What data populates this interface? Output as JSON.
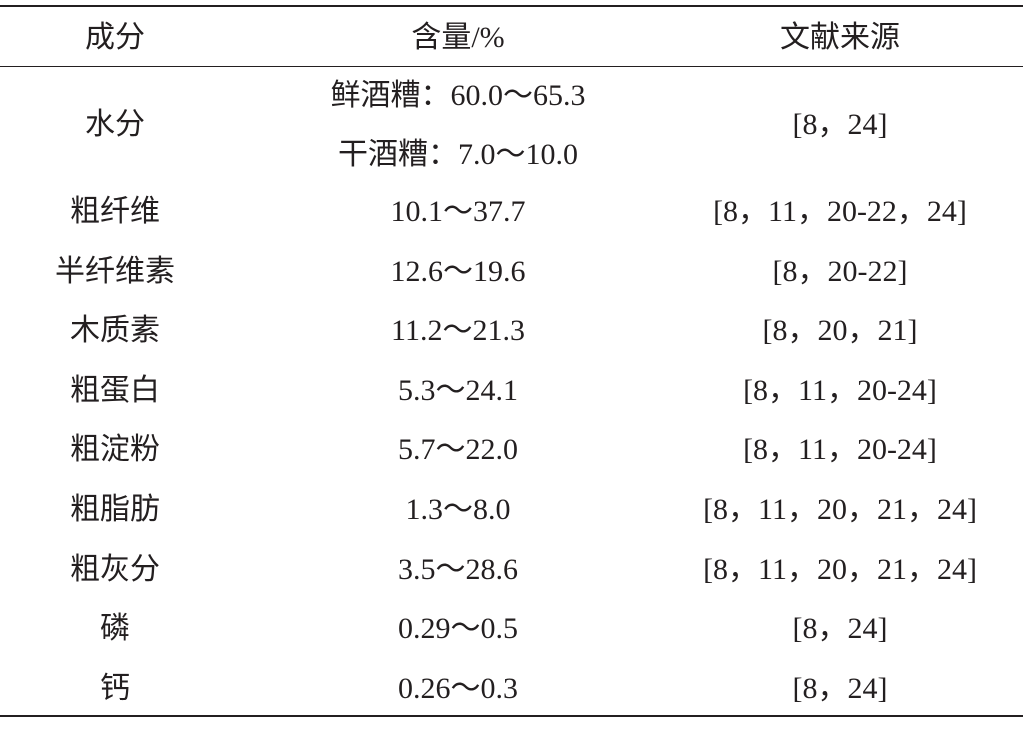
{
  "table": {
    "header": [
      "成分",
      "含量/%",
      "文献来源"
    ],
    "rows": [
      [
        "水分",
        [
          "鲜酒糟：60.0～65.3",
          "干酒糟：7.0～10.0"
        ],
        "[8，24]"
      ],
      [
        "粗纤维",
        "10.1～37.7",
        "[8，11，20-22，24]"
      ],
      [
        "半纤维素",
        "12.6～19.6",
        "[8，20-22]"
      ],
      [
        "木质素",
        "11.2～21.3",
        "[8，20，21]"
      ],
      [
        "粗蛋白",
        "5.3～24.1",
        "[8，11，20-24]"
      ],
      [
        "粗淀粉",
        "5.7～22.0",
        "[8，11，20-24]"
      ],
      [
        "粗脂肪",
        "1.3～8.0",
        "[8，11，20，21，24]"
      ],
      [
        "粗灰分",
        "3.5～28.6",
        "[8，11，20，21，24]"
      ],
      [
        "磷",
        "0.29～0.5",
        "[8，24]"
      ],
      [
        "钙",
        "0.26～0.3",
        "[8，24]"
      ]
    ]
  }
}
